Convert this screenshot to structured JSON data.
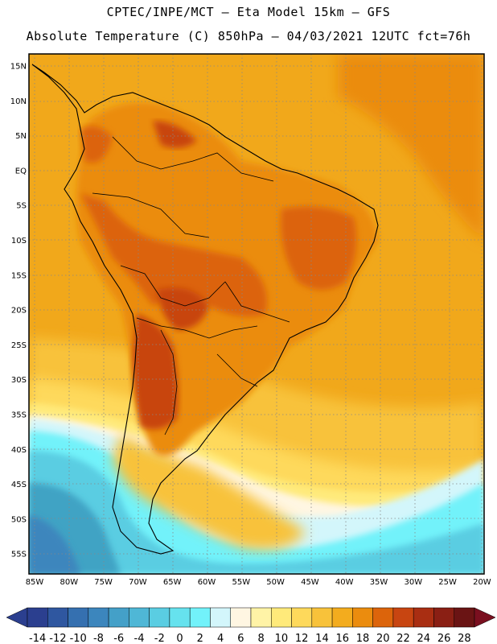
{
  "header": {
    "line1": "CPTEC/INPE/MCT –  Eta Model 15km – GFS",
    "line2": "Absolute Temperature (C) 850hPa – 04/03/2021 12UTC fct=76h"
  },
  "map": {
    "lat_labels": [
      "15N",
      "10N",
      "5N",
      "EQ",
      "5S",
      "10S",
      "15S",
      "20S",
      "25S",
      "30S",
      "35S",
      "40S",
      "45S",
      "50S",
      "55S"
    ],
    "lon_labels": [
      "85W",
      "80W",
      "75W",
      "70W",
      "65W",
      "60W",
      "55W",
      "50W",
      "45W",
      "40W",
      "35W",
      "30W",
      "25W",
      "20W"
    ],
    "grid": true
  },
  "colorbar": {
    "labels": [
      "-14",
      "-12",
      "-10",
      "-8",
      "-6",
      "-4",
      "-2",
      "0",
      "2",
      "4",
      "6",
      "8",
      "10",
      "12",
      "14",
      "16",
      "18",
      "20",
      "22",
      "24",
      "26",
      "28"
    ],
    "colors": [
      "#2b3f8f",
      "#2f57a0",
      "#3570b0",
      "#3c86bd",
      "#44a0c8",
      "#4fb7d6",
      "#5acde2",
      "#66e2ee",
      "#72f2fa",
      "#d3f6fb",
      "#fff6e2",
      "#fff3a6",
      "#ffea7a",
      "#fed95b",
      "#f8c23a",
      "#f3ac1e",
      "#eb8c0e",
      "#dc640b",
      "#c84511",
      "#a92e12",
      "#8a1f14",
      "#6a1414"
    ]
  },
  "colors": {
    "ocean_warm": "#f1a81b",
    "land_hot": "#d86510",
    "south_cold": "#3fa3c4"
  }
}
